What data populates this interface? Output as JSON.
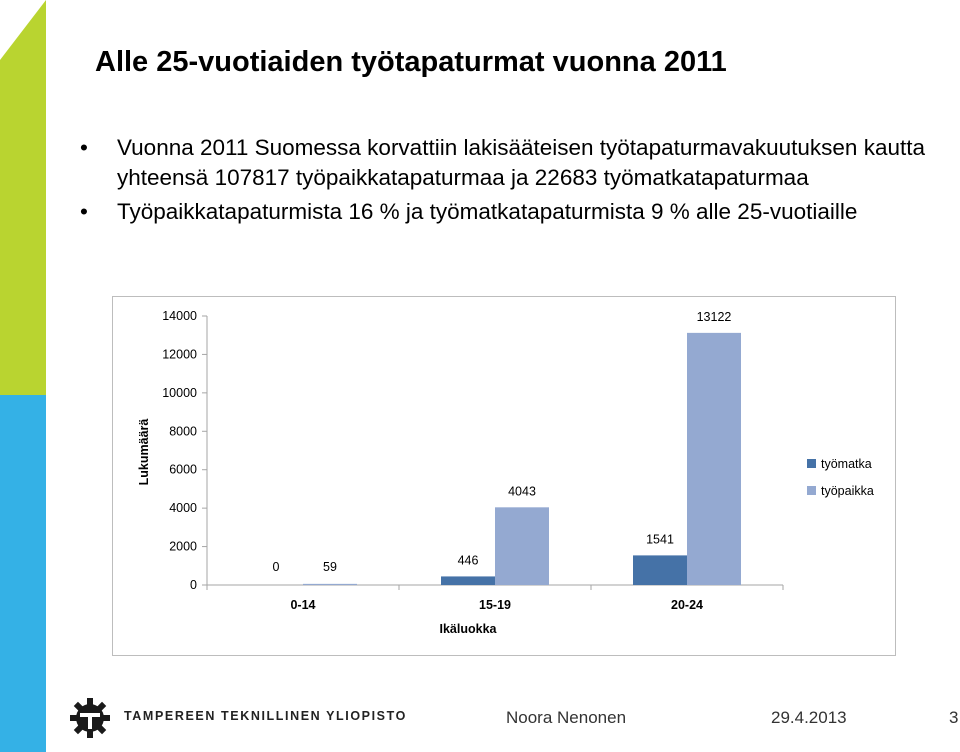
{
  "slide": {
    "title": "Alle 25-vuotiaiden työtapaturmat vuonna 2011",
    "bullets": [
      "Vuonna 2011 Suomessa korvattiin lakisääteisen työtapaturmavakuutuksen kautta yhteensä 107817 työpaikkatapaturmaa ja 22683 työmatkatapaturmaa",
      "Työpaikkatapaturmista 16 % ja työmatkatapaturmista 9 % alle 25-vuotiaille"
    ]
  },
  "chart_data": {
    "type": "bar",
    "categories": [
      "0-14",
      "15-19",
      "20-24"
    ],
    "series": [
      {
        "name": "työmatka",
        "values": [
          0,
          446,
          1541
        ],
        "color": "#4572a7"
      },
      {
        "name": "työpaikka",
        "values": [
          59,
          4043,
          13122
        ],
        "color": "#94a9d1"
      }
    ],
    "xlabel": "Ikäluokka",
    "ylabel": "Lukumäärä",
    "ylim": [
      0,
      14000
    ],
    "yticks": [
      0,
      2000,
      4000,
      6000,
      8000,
      10000,
      12000,
      14000
    ],
    "grid": false,
    "legend_position": "right"
  },
  "footer": {
    "org": "TAMPEREEN TEKNILLINEN YLIOPISTO",
    "logo_icon": "gear-logo-icon",
    "author": "Noora Nenonen",
    "date": "29.4.2013",
    "page": "3"
  }
}
